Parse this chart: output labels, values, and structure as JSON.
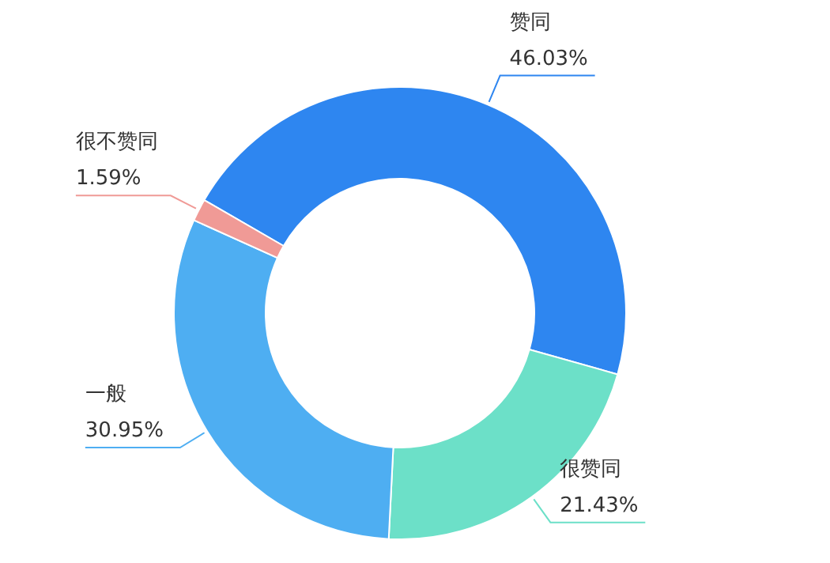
{
  "chart_data": {
    "type": "donut",
    "categories": [
      "赞同",
      "很赞同",
      "一般",
      "很不赞同"
    ],
    "values": [
      46.03,
      21.43,
      30.95,
      1.59
    ],
    "colors": [
      "#2e86f0",
      "#6ce0c8",
      "#4eaef2",
      "#f09a96"
    ],
    "value_labels": [
      "46.03%",
      "21.43%",
      "30.95%",
      "1.59%"
    ]
  }
}
